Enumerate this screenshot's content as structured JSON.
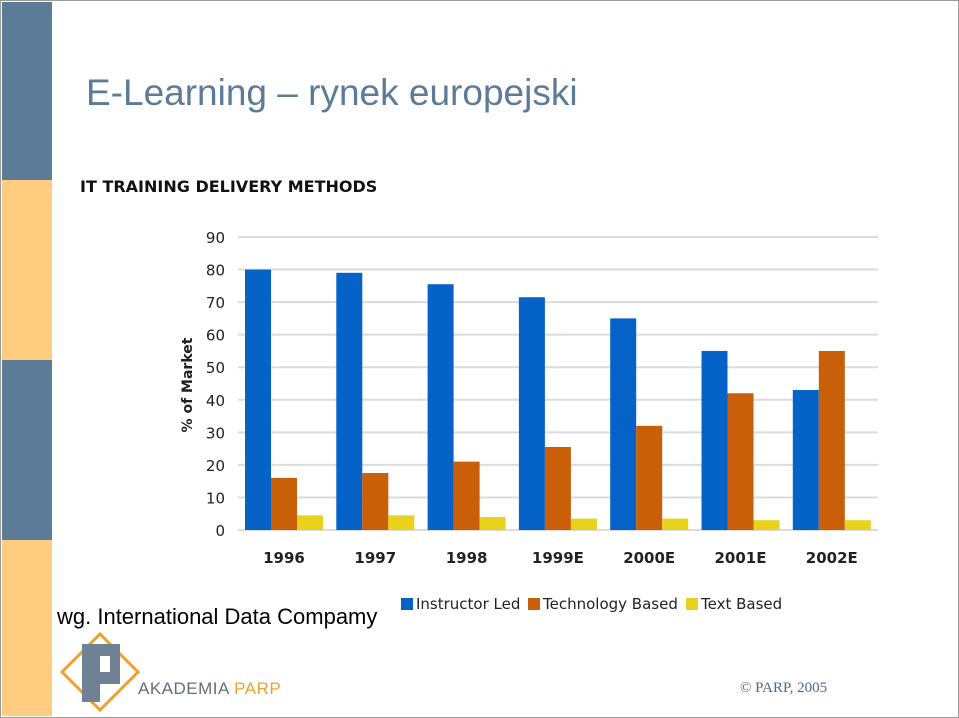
{
  "slide": {
    "title": "E-Learning – rynek europejski",
    "source_note": "wg. International Data Compamy",
    "footer": "© PARP, 2005"
  },
  "logo": {
    "name_main": "AKADEMIA",
    "name_accent": "PARP",
    "icon": "parp-diamond-logo-icon"
  },
  "colors": {
    "stripe_blue": "#5c7b96",
    "stripe_orange": "#ffcc80",
    "instructor_led": "#0563c8",
    "technology_based": "#c95f08",
    "text_based": "#e8d21c"
  },
  "chart_data": {
    "type": "bar",
    "title": "IT TRAINING DELIVERY METHODS",
    "xlabel": "",
    "ylabel": "% of Market",
    "ylim": [
      0,
      90
    ],
    "yticks": [
      "90",
      "80",
      "70",
      "60",
      "50",
      "40",
      "30",
      "20",
      "10",
      "0"
    ],
    "grid": true,
    "legend_position": "bottom",
    "categories": [
      "1996",
      "1997",
      "1998",
      "1999E",
      "2000E",
      "2001E",
      "2002E"
    ],
    "series": [
      {
        "name": "Instructor Led",
        "values": [
          80,
          79,
          75.5,
          71.5,
          65,
          55,
          43
        ]
      },
      {
        "name": "Technology Based",
        "values": [
          16,
          17.5,
          21,
          25.5,
          32,
          42,
          55
        ]
      },
      {
        "name": "Text Based",
        "values": [
          4.5,
          4.5,
          4,
          3.5,
          3.5,
          3,
          3
        ]
      }
    ]
  }
}
